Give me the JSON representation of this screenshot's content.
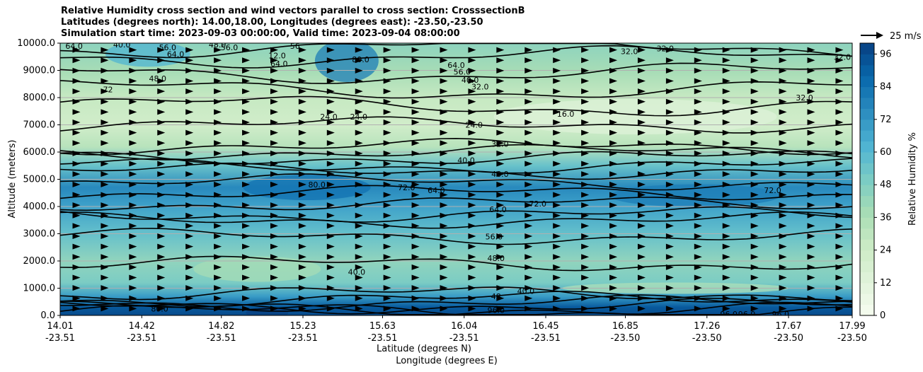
{
  "title_lines": [
    "Relative Humidity cross section and wind vectors parallel to cross section: CrosssectionB",
    "Latitudes (degrees north): 14.00,18.00, Longitudes (degrees east): -23.50,-23.50",
    "Simulation start time: 2023-09-03 00:00:00, Valid time: 2023-09-04 08:00:00"
  ],
  "chart_data": {
    "type": "heatmap",
    "subtype": "filled contour cross-section with wind vectors",
    "ylabel": "Altitude (meters)",
    "xlabel_lines": [
      "Latitude (degrees N)",
      "Longitude (degrees E)"
    ],
    "ylim": [
      0,
      10000
    ],
    "y_ticks": [
      "0.0",
      "1000.0",
      "2000.0",
      "3000.0",
      "4000.0",
      "5000.0",
      "6000.0",
      "7000.0",
      "8000.0",
      "9000.0",
      "10000.0"
    ],
    "x_tick_lat": [
      "14.01",
      "14.42",
      "14.82",
      "15.23",
      "15.63",
      "16.04",
      "16.45",
      "16.85",
      "17.26",
      "17.67",
      "17.99"
    ],
    "x_tick_lon": [
      "-23.51",
      "-23.51",
      "-23.51",
      "-23.51",
      "-23.51",
      "-23.51",
      "-23.51",
      "-23.50",
      "-23.50",
      "-23.50",
      "-23.50"
    ],
    "lat_range": [
      14.01,
      17.99
    ],
    "grid": "horizontal lines at y ticks",
    "colorbar": {
      "label": "Relative Humidity %",
      "range": [
        0,
        100
      ],
      "ticks": [
        "0",
        "12",
        "24",
        "36",
        "48",
        "60",
        "72",
        "84",
        "96"
      ],
      "colormap": "GnBu",
      "colors": [
        "#f7fcf0",
        "#e0f3db",
        "#ccebc5",
        "#a8ddb5",
        "#7bccc4",
        "#4eb3d3",
        "#2b8cbe",
        "#0868ac",
        "#084081"
      ]
    },
    "quiver_key": "25 m/s",
    "wind_direction": "eastward/positive (northward along section), roughly uniform",
    "rh_profile": [
      {
        "alt": 0,
        "rh": 97
      },
      {
        "alt": 300,
        "rh": 92
      },
      {
        "alt": 700,
        "rh": 70
      },
      {
        "alt": 1200,
        "rh": 50
      },
      {
        "alt": 2000,
        "rh": 44
      },
      {
        "alt": 3000,
        "rh": 56
      },
      {
        "alt": 4000,
        "rh": 68
      },
      {
        "alt": 4700,
        "rh": 76
      },
      {
        "alt": 5500,
        "rh": 55
      },
      {
        "alt": 6200,
        "rh": 32
      },
      {
        "alt": 7000,
        "rh": 22
      },
      {
        "alt": 8000,
        "rh": 27
      },
      {
        "alt": 9000,
        "rh": 38
      },
      {
        "alt": 10000,
        "rh": 45
      }
    ],
    "contour_labels": [
      {
        "text": "64.0",
        "lat": 14.08,
        "alt": 9900
      },
      {
        "text": "40.0",
        "lat": 14.32,
        "alt": 9950
      },
      {
        "text": "56.0",
        "lat": 14.55,
        "alt": 9850
      },
      {
        "text": "64.0",
        "lat": 14.59,
        "alt": 9600
      },
      {
        "text": "48.0",
        "lat": 14.8,
        "alt": 9950
      },
      {
        "text": "56.0",
        "lat": 14.86,
        "alt": 9850
      },
      {
        "text": "12.0",
        "lat": 15.1,
        "alt": 9550
      },
      {
        "text": "64.0",
        "lat": 15.11,
        "alt": 9250
      },
      {
        "text": "56",
        "lat": 15.19,
        "alt": 9900
      },
      {
        "text": "72",
        "lat": 14.25,
        "alt": 8300
      },
      {
        "text": "48.0",
        "lat": 14.5,
        "alt": 8700
      },
      {
        "text": "80.0",
        "lat": 15.52,
        "alt": 9400
      },
      {
        "text": "24.0",
        "lat": 15.36,
        "alt": 7300
      },
      {
        "text": "24.0",
        "lat": 15.51,
        "alt": 7300
      },
      {
        "text": "64.0",
        "lat": 16.0,
        "alt": 9200
      },
      {
        "text": "56.0",
        "lat": 16.03,
        "alt": 8950
      },
      {
        "text": "40.0",
        "lat": 16.07,
        "alt": 8650
      },
      {
        "text": "32.0",
        "lat": 16.12,
        "alt": 8400
      },
      {
        "text": "16.0",
        "lat": 16.55,
        "alt": 7400
      },
      {
        "text": "24.0",
        "lat": 16.09,
        "alt": 7000
      },
      {
        "text": "32.0",
        "lat": 16.87,
        "alt": 9700
      },
      {
        "text": "32.0",
        "lat": 17.05,
        "alt": 9800
      },
      {
        "text": "32.0",
        "lat": 17.94,
        "alt": 9500
      },
      {
        "text": "32.0",
        "lat": 17.75,
        "alt": 8000
      },
      {
        "text": "32.0",
        "lat": 16.22,
        "alt": 6300
      },
      {
        "text": "40.0",
        "lat": 16.05,
        "alt": 5700
      },
      {
        "text": "48.0",
        "lat": 16.22,
        "alt": 5200
      },
      {
        "text": "80.0",
        "lat": 15.3,
        "alt": 4800
      },
      {
        "text": "72.0",
        "lat": 15.75,
        "alt": 4700
      },
      {
        "text": "64.0",
        "lat": 15.9,
        "alt": 4600
      },
      {
        "text": "72.0",
        "lat": 17.59,
        "alt": 4600
      },
      {
        "text": "64.0",
        "lat": 16.21,
        "alt": 3900
      },
      {
        "text": "72.0",
        "lat": 16.41,
        "alt": 4100
      },
      {
        "text": "56.0",
        "lat": 16.19,
        "alt": 2900
      },
      {
        "text": "48.0",
        "lat": 16.2,
        "alt": 2100
      },
      {
        "text": "40.0",
        "lat": 15.5,
        "alt": 1600
      },
      {
        "text": "40.0",
        "lat": 16.35,
        "alt": 900
      },
      {
        "text": "48",
        "lat": 16.2,
        "alt": 700
      },
      {
        "text": "96.0",
        "lat": 16.2,
        "alt": 200
      },
      {
        "text": "80.0",
        "lat": 14.51,
        "alt": 250
      },
      {
        "text": "96.0",
        "lat": 17.37,
        "alt": 50
      },
      {
        "text": "96.0",
        "lat": 17.46,
        "alt": 50
      },
      {
        "text": "96.0",
        "lat": 17.63,
        "alt": 50
      }
    ]
  }
}
